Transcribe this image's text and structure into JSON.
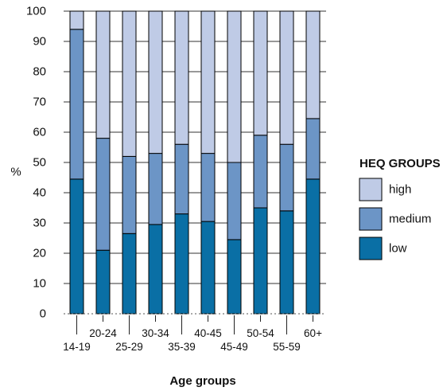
{
  "chart_data": {
    "type": "bar",
    "stacked": true,
    "xlabel": "Age groups",
    "ylabel": "%",
    "ylim": [
      0,
      100
    ],
    "yticks": [
      0,
      10,
      20,
      30,
      40,
      50,
      60,
      70,
      80,
      90,
      100
    ],
    "categories": [
      "14-19",
      "20-24",
      "25-29",
      "30-34",
      "35-39",
      "40-45",
      "45-49",
      "50-54",
      "55-59",
      "60+"
    ],
    "series": [
      {
        "name": "low",
        "color": "#0a6fa5",
        "values": [
          44.5,
          21,
          26.5,
          29.5,
          33,
          30.5,
          24.5,
          35,
          34,
          44.5
        ]
      },
      {
        "name": "medium",
        "color": "#6c95c6",
        "values": [
          49.5,
          37,
          25.5,
          23.5,
          23,
          22.5,
          25.5,
          24,
          22,
          20
        ]
      },
      {
        "name": "high",
        "color": "#bfcbe6",
        "values": [
          6,
          42,
          48,
          47,
          44,
          47,
          50,
          41,
          44,
          35.5
        ]
      }
    ],
    "legend": {
      "title": "HEQ GROUPS",
      "position": "right",
      "order": [
        "high",
        "medium",
        "low"
      ]
    },
    "grid": true
  }
}
